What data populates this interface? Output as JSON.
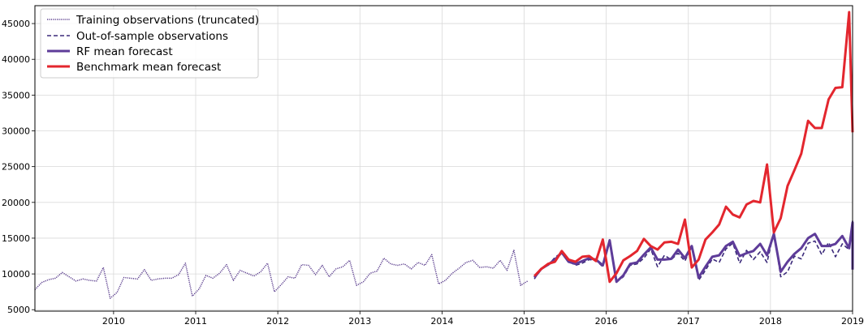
{
  "chart_data": {
    "type": "line",
    "title": "",
    "xlabel": "",
    "ylabel": "",
    "xlim": [
      2009.042,
      2019.0
    ],
    "ylim": [
      4800,
      47500
    ],
    "grid": true,
    "legend_position": "top-left",
    "x_ticks": [
      "2010",
      "2011",
      "2012",
      "2013",
      "2014",
      "2015",
      "2016",
      "2017",
      "2018",
      "2019"
    ],
    "y_ticks": [
      "5000",
      "10000",
      "15000",
      "20000",
      "25000",
      "30000",
      "35000",
      "40000",
      "45000"
    ],
    "colors": {
      "training": "#5b3e8e",
      "out_of_sample": "#3b2a7a",
      "rf": "#5e3c99",
      "benchmark": "#e3262e"
    },
    "series": [
      {
        "name": "Training observations (truncated)",
        "style": "dotted",
        "start": 2009.042,
        "step": 0.08333,
        "values": [
          7800,
          8800,
          9200,
          9400,
          10200,
          9600,
          9000,
          9300,
          9100,
          9000,
          10900,
          6600,
          7400,
          9500,
          9400,
          9300,
          10600,
          9100,
          9300,
          9400,
          9400,
          9900,
          11500,
          6900,
          7900,
          9800,
          9400,
          10100,
          11300,
          9100,
          10500,
          10100,
          9700,
          10300,
          11500,
          7500,
          8500,
          9600,
          9400,
          11300,
          11200,
          9900,
          11200,
          9600,
          10700,
          11000,
          11900,
          8400,
          8900,
          10100,
          10400,
          12200,
          11400,
          11200,
          11400,
          10700,
          11600,
          11200,
          12700,
          8600,
          9100,
          10100,
          10800,
          11600,
          11900,
          10900,
          11000,
          10800,
          11900,
          10500,
          13300,
          8400,
          9000
        ]
      },
      {
        "name": "Out-of-sample observations",
        "style": "dashed",
        "start": 2015.125,
        "step": 0.08333,
        "values": [
          9300,
          10800,
          11200,
          12300,
          13000,
          11800,
          11200,
          11500,
          12000,
          11900,
          11000,
          14500,
          8900,
          9600,
          11200,
          11400,
          12200,
          13500,
          11000,
          12600,
          12000,
          12900,
          11800,
          13900,
          9100,
          10500,
          12100,
          11600,
          13500,
          14300,
          11500,
          13300,
          12000,
          13100,
          11600,
          15900,
          9600,
          10300,
          12500,
          12100,
          14300,
          14600,
          12700,
          14400,
          12400,
          14200,
          13400,
          17400,
          10900
        ]
      },
      {
        "name": "RF mean forecast",
        "style": "solid",
        "start": 2015.125,
        "step": 0.08333,
        "values": [
          9500,
          10700,
          11300,
          12000,
          13000,
          11700,
          11400,
          11800,
          12200,
          12000,
          11200,
          14700,
          8900,
          9800,
          11400,
          11600,
          12700,
          13700,
          12000,
          12000,
          12100,
          13400,
          12200,
          13900,
          9500,
          11000,
          12400,
          12600,
          13900,
          14500,
          12500,
          12900,
          13200,
          14200,
          12600,
          15600,
          10300,
          11700,
          12800,
          13600,
          15000,
          15600,
          13900,
          13900,
          14200,
          15300,
          13600,
          17200,
          10600
        ]
      },
      {
        "name": "Benchmark mean forecast",
        "style": "solid",
        "start": 2015.125,
        "step": 0.08333,
        "values": [
          9700,
          10700,
          11400,
          11700,
          13200,
          12000,
          11700,
          12400,
          12500,
          11800,
          14800,
          8900,
          10100,
          11900,
          12500,
          13200,
          14900,
          13900,
          13400,
          14400,
          14500,
          14200,
          17600,
          10900,
          12000,
          14800,
          15800,
          16900,
          19400,
          18300,
          17900,
          19700,
          20200,
          20000,
          25300,
          15800,
          17800,
          22300,
          24500,
          26800,
          31400,
          30400,
          30400,
          34400,
          36000,
          36100,
          46600,
          29800
        ]
      }
    ]
  }
}
